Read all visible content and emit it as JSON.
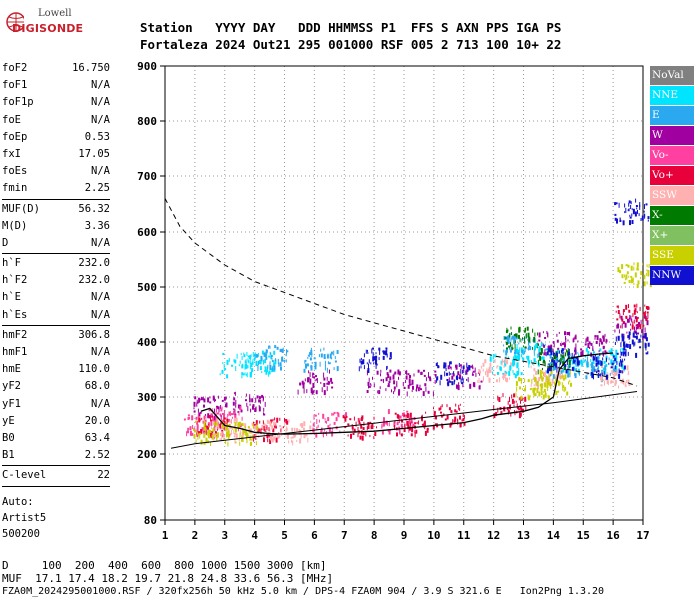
{
  "logo": {
    "line1": "Lowell",
    "line2": "DIGISONDE"
  },
  "header": {
    "row1": "Station   YYYY DAY   DDD HHMMSS P1  FFS S AXN PPS IGA PS",
    "row2": "Fortaleza 2024 Out21 295 001000 RSF 005 2 713 100 10+ 22"
  },
  "params_group1": [
    {
      "k": "foF2",
      "v": "16.750"
    },
    {
      "k": "foF1",
      "v": "N/A"
    },
    {
      "k": "foF1p",
      "v": "N/A"
    },
    {
      "k": "foE",
      "v": "N/A"
    },
    {
      "k": "foEp",
      "v": "0.53"
    },
    {
      "k": "fxI",
      "v": "17.05"
    },
    {
      "k": "foEs",
      "v": "N/A"
    },
    {
      "k": "fmin",
      "v": "2.25"
    }
  ],
  "params_group2": [
    {
      "k": "MUF(D)",
      "v": "56.32"
    },
    {
      "k": "M(D)",
      "v": "3.36"
    },
    {
      "k": "D",
      "v": "N/A"
    }
  ],
  "params_group3": [
    {
      "k": "h`F",
      "v": "232.0"
    },
    {
      "k": "h`F2",
      "v": "232.0"
    },
    {
      "k": "h`E",
      "v": "N/A"
    },
    {
      "k": "h`Es",
      "v": "N/A"
    }
  ],
  "params_group4": [
    {
      "k": "hmF2",
      "v": "306.8"
    },
    {
      "k": "hmF1",
      "v": "N/A"
    },
    {
      "k": "hmE",
      "v": "110.0"
    },
    {
      "k": "yF2",
      "v": "68.0"
    },
    {
      "k": "yF1",
      "v": "N/A"
    },
    {
      "k": "yE",
      "v": "20.0"
    },
    {
      "k": "B0",
      "v": "63.4"
    },
    {
      "k": "B1",
      "v": "2.52"
    }
  ],
  "params_group5": [
    {
      "k": "C-level",
      "v": "22"
    }
  ],
  "autoscale": [
    "Auto:",
    "Artist5",
    "500200"
  ],
  "legend": [
    {
      "label": "NoVal",
      "color": "#808080",
      "text": "#ffffff"
    },
    {
      "label": "NNE",
      "color": "#00e5ff",
      "text": "#ffffff"
    },
    {
      "label": "E",
      "color": "#2aa8f0",
      "text": "#ffffff"
    },
    {
      "label": "W",
      "color": "#a000a0",
      "text": "#ffffff"
    },
    {
      "label": "Vo-",
      "color": "#ff40a0",
      "text": "#ffffff"
    },
    {
      "label": "Vo+",
      "color": "#e8003a",
      "text": "#ffffff"
    },
    {
      "label": "SSW",
      "color": "#ffb0b0",
      "text": "#ffffff"
    },
    {
      "label": "X-",
      "color": "#007a00",
      "text": "#ffffff"
    },
    {
      "label": "X+",
      "color": "#80c060",
      "text": "#ffffff"
    },
    {
      "label": "SSE",
      "color": "#c8d000",
      "text": "#ffffff"
    },
    {
      "label": "NNW",
      "color": "#1010d0",
      "text": "#ffffff"
    }
  ],
  "bottom": {
    "row1": "D     100  200  400  600  800 1000 1500 3000 [km]",
    "row2": "MUF  17.1 17.4 18.2 19.7 21.8 24.8 33.6 56.3 [MHz]",
    "row3": "FZA0M_2024295001000.RSF / 320fx256h 50 kHz 5.0 km / DPS-4 FZA0M 904 / 3.9 S 321.6 E   Ion2Png 1.3.20"
  },
  "chart_data": {
    "type": "scatter",
    "x_ticks": [
      1,
      2,
      3,
      4,
      5,
      6,
      7,
      8,
      9,
      10,
      11,
      12,
      13,
      14,
      15,
      16,
      17
    ],
    "y_ticks": [
      80,
      200,
      300,
      400,
      500,
      600,
      700,
      800,
      900
    ],
    "xlim": [
      1,
      17
    ],
    "ylim": [
      80,
      900
    ],
    "y_scale": "nonlinear (ionogram virtual height)",
    "grid": "dotted",
    "profile_curve": [
      [
        1.2,
        210
      ],
      [
        2,
        218
      ],
      [
        3,
        224
      ],
      [
        4,
        230
      ],
      [
        5,
        236
      ],
      [
        6,
        242
      ],
      [
        7,
        248
      ],
      [
        8,
        254
      ],
      [
        9,
        260
      ],
      [
        10,
        266
      ],
      [
        11,
        272
      ],
      [
        12,
        278
      ],
      [
        13,
        284
      ],
      [
        14,
        290
      ],
      [
        15,
        297
      ],
      [
        16,
        304
      ],
      [
        16.8,
        310
      ]
    ],
    "dashed_curve": [
      [
        1,
        660
      ],
      [
        1.5,
        610
      ],
      [
        2,
        580
      ],
      [
        3,
        540
      ],
      [
        4,
        510
      ],
      [
        5,
        490
      ],
      [
        6,
        470
      ],
      [
        7,
        450
      ],
      [
        8,
        435
      ],
      [
        9,
        420
      ],
      [
        10,
        405
      ],
      [
        11,
        390
      ],
      [
        12,
        375
      ],
      [
        13,
        365
      ],
      [
        14,
        355
      ],
      [
        15,
        345
      ],
      [
        16,
        335
      ],
      [
        16.8,
        320
      ]
    ],
    "trace_curve": [
      [
        2.2,
        275
      ],
      [
        2.5,
        280
      ],
      [
        3.0,
        250
      ],
      [
        3.5,
        245
      ],
      [
        4.0,
        238
      ],
      [
        4.5,
        236
      ],
      [
        5.0,
        235
      ],
      [
        6,
        236
      ],
      [
        7,
        238
      ],
      [
        8,
        240
      ],
      [
        9,
        245
      ],
      [
        10,
        250
      ],
      [
        11,
        255
      ],
      [
        11.6,
        262
      ],
      [
        12,
        268
      ],
      [
        13,
        275
      ],
      [
        13.5,
        282
      ],
      [
        14.0,
        300
      ],
      [
        14.2,
        350
      ],
      [
        14.5,
        370
      ],
      [
        15,
        375
      ],
      [
        15.5,
        378
      ],
      [
        16,
        380
      ]
    ],
    "series": [
      {
        "name": "NNE",
        "points": [
          [
            3.4,
            360
          ],
          [
            4.1,
            365
          ],
          [
            12.4,
            360
          ],
          [
            13.2,
            380
          ],
          [
            14.6,
            370
          ],
          [
            15.8,
            370
          ]
        ]
      },
      {
        "name": "E",
        "points": [
          [
            4.5,
            375
          ],
          [
            6.2,
            370
          ],
          [
            12.8,
            400
          ],
          [
            14.3,
            360
          ],
          [
            15.5,
            355
          ]
        ]
      },
      {
        "name": "W",
        "points": [
          [
            2.5,
            285
          ],
          [
            3.8,
            290
          ],
          [
            6.0,
            330
          ],
          [
            8.3,
            330
          ],
          [
            9.5,
            330
          ],
          [
            11.0,
            340
          ],
          [
            14.0,
            400
          ],
          [
            15.2,
            400
          ],
          [
            16.6,
            430
          ]
        ]
      },
      {
        "name": "Vo-",
        "points": [
          [
            2.2,
            255
          ],
          [
            3.0,
            265
          ],
          [
            6.5,
            255
          ],
          [
            8.8,
            260
          ]
        ]
      },
      {
        "name": "Vo+",
        "points": [
          [
            2.6,
            250
          ],
          [
            4.5,
            245
          ],
          [
            7.5,
            250
          ],
          [
            9.2,
            255
          ],
          [
            10.5,
            270
          ],
          [
            12.5,
            290
          ],
          [
            16.6,
            450
          ]
        ]
      },
      {
        "name": "SSW",
        "points": [
          [
            3.1,
            245
          ],
          [
            4.2,
            243
          ],
          [
            5.3,
            242
          ],
          [
            12.0,
            350
          ],
          [
            13.8,
            340
          ],
          [
            16.0,
            340
          ]
        ]
      },
      {
        "name": "X-",
        "points": [
          [
            12.9,
            410
          ],
          [
            14.0,
            370
          ]
        ]
      },
      {
        "name": "SSE",
        "points": [
          [
            2.5,
            240
          ],
          [
            3.5,
            238
          ],
          [
            13.3,
            320
          ],
          [
            14.0,
            330
          ],
          [
            16.7,
            525
          ]
        ]
      },
      {
        "name": "NNW",
        "points": [
          [
            8.0,
            370
          ],
          [
            10.6,
            345
          ],
          [
            14.3,
            370
          ],
          [
            15.8,
            360
          ],
          [
            16.6,
            400
          ],
          [
            16.6,
            640
          ]
        ]
      }
    ]
  }
}
